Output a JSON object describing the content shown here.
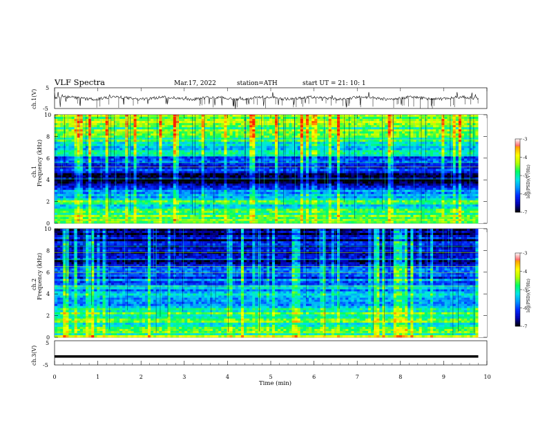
{
  "header": {
    "title": "VLF  Spectra",
    "date": "Mar.17, 2022",
    "station": "station=ATH",
    "start_ut": "start  UT  =    21: 10: 1"
  },
  "chart_data": [
    {
      "type": "line",
      "panel": "ch1-waveform",
      "ylabel": "ch.1(V)",
      "ylim": [
        -5,
        5
      ],
      "yticks": [
        "5",
        "-5"
      ],
      "baseline": 0,
      "description_values": "noise waveform around 0 V with spikes",
      "x_max_min": 9.8
    },
    {
      "type": "heatmap",
      "panel": "ch1-spectrogram",
      "ylabel_line1": "ch.1",
      "ylabel_line2": "Frequency  (kHz)",
      "ylim": [
        0,
        10
      ],
      "yticks": [
        "0",
        "2",
        "4",
        "6",
        "8",
        "10"
      ],
      "x_range_min": [
        0,
        9.8
      ],
      "colorbar": {
        "label": "log(PSD)(V²/Hz)",
        "range": [
          -7,
          -3
        ],
        "ticks": [
          "-3",
          "-4",
          "-5",
          "-6",
          "-7"
        ]
      },
      "freq_profile_khz": [
        [
          0.0,
          -4.6
        ],
        [
          0.5,
          -4.4
        ],
        [
          1.0,
          -4.7
        ],
        [
          1.5,
          -5.4
        ],
        [
          2.0,
          -4.9
        ],
        [
          2.5,
          -5.5
        ],
        [
          3.0,
          -6.0
        ],
        [
          3.5,
          -6.3
        ],
        [
          4.0,
          -6.9
        ],
        [
          4.5,
          -6.8
        ],
        [
          5.0,
          -6.2
        ],
        [
          5.5,
          -6.1
        ],
        [
          6.0,
          -5.9
        ],
        [
          6.5,
          -5.2
        ],
        [
          7.0,
          -5.3
        ],
        [
          7.5,
          -5.0
        ],
        [
          8.0,
          -4.8
        ],
        [
          8.5,
          -4.7
        ],
        [
          9.0,
          -4.6
        ],
        [
          9.5,
          -4.5
        ],
        [
          10.0,
          -4.4
        ]
      ]
    },
    {
      "type": "heatmap",
      "panel": "ch2-spectrogram",
      "ylabel_line1": "ch.2",
      "ylabel_line2": "Frequency  (kHz)",
      "ylim": [
        0,
        10
      ],
      "yticks": [
        "0",
        "2",
        "4",
        "6",
        "8",
        "10"
      ],
      "x_range_min": [
        0,
        9.8
      ],
      "colorbar": {
        "label": "log(PSD)(V²/Hz)",
        "range": [
          -7,
          -3
        ],
        "ticks": [
          "-3",
          "-4",
          "-5",
          "-6",
          "-7"
        ]
      },
      "freq_profile_khz": [
        [
          0.0,
          -4.5
        ],
        [
          0.5,
          -4.8
        ],
        [
          1.0,
          -5.0
        ],
        [
          1.5,
          -4.9
        ],
        [
          2.0,
          -4.6
        ],
        [
          2.5,
          -5.1
        ],
        [
          3.0,
          -5.3
        ],
        [
          3.5,
          -5.2
        ],
        [
          4.0,
          -5.6
        ],
        [
          4.5,
          -5.4
        ],
        [
          5.0,
          -5.8
        ],
        [
          5.5,
          -6.0
        ],
        [
          6.0,
          -6.1
        ],
        [
          6.5,
          -6.2
        ],
        [
          7.0,
          -6.4
        ],
        [
          7.5,
          -6.5
        ],
        [
          8.0,
          -6.5
        ],
        [
          8.5,
          -6.6
        ],
        [
          9.0,
          -6.6
        ],
        [
          9.5,
          -6.7
        ],
        [
          10.0,
          -6.7
        ]
      ]
    },
    {
      "type": "line",
      "panel": "ch3-waveform",
      "ylabel": "ch.3(V)",
      "ylim": [
        -5,
        5
      ],
      "yticks": [
        "5",
        "-5"
      ],
      "baseline": -1.5,
      "xlabel": "Time  (min)",
      "xlim": [
        0,
        10
      ],
      "xticks": [
        "0",
        "1",
        "2",
        "3",
        "4",
        "5",
        "6",
        "7",
        "8",
        "9",
        "10"
      ]
    }
  ],
  "colorscale": [
    "#000000",
    "#0000b0",
    "#0028ff",
    "#0096ff",
    "#00e6e6",
    "#00ff64",
    "#b4ff00",
    "#ffff00",
    "#ffa000",
    "#ff2000",
    "#ff6060",
    "#ffd0d0",
    "#ffffff"
  ]
}
